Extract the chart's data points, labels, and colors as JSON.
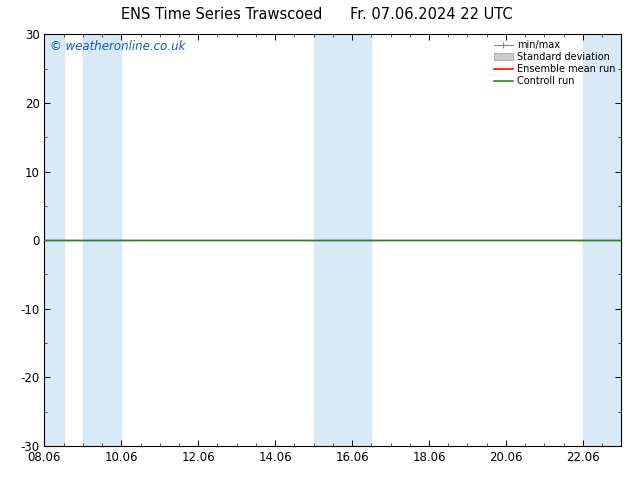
{
  "title": "ENS Time Series Trawscoed",
  "title2": "Fr. 07.06.2024 22 UTC",
  "watermark": "© weatheronline.co.uk",
  "xlabel_ticks": [
    "08.06",
    "10.06",
    "12.06",
    "14.06",
    "16.06",
    "18.06",
    "20.06",
    "22.06"
  ],
  "ylim": [
    -30,
    30
  ],
  "yticks": [
    -30,
    -20,
    -10,
    0,
    10,
    20,
    30
  ],
  "xlim": [
    0,
    15
  ],
  "background_color": "#ffffff",
  "plot_bg_color": "#ffffff",
  "shaded_band_color": "#d8eaf8",
  "shaded_col_pairs": [
    [
      0,
      0.5
    ],
    [
      1.0,
      2.0
    ],
    [
      7.0,
      8.5
    ],
    [
      14.0,
      15.0
    ]
  ],
  "legend_items": [
    {
      "label": "min/max",
      "color": "#aaaaaa",
      "type": "errorbar"
    },
    {
      "label": "Standard deviation",
      "color": "#cccccc",
      "type": "box"
    },
    {
      "label": "Ensemble mean run",
      "color": "#ff0000",
      "type": "line"
    },
    {
      "label": "Controll run",
      "color": "#228822",
      "type": "line"
    }
  ],
  "zero_line_y": 0,
  "zero_line_color": "#000000",
  "tick_label_fontsize": 8.5,
  "title_fontsize": 10.5,
  "watermark_color": "#1155cc",
  "watermark_fontsize": 8.5
}
